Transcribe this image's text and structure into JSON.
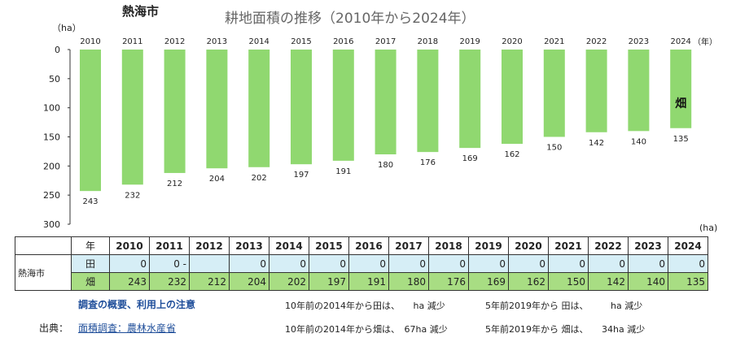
{
  "header": {
    "region": "熱海市",
    "title": "耕地面積の推移（2010年から2024年）",
    "unit_ha": "（ha）",
    "unit_year": "（年）",
    "unit_ha_right": "(ha)"
  },
  "chart_data": {
    "type": "bar",
    "orientation": "vertical-inverted",
    "categories": [
      "2010",
      "2011",
      "2012",
      "2013",
      "2014",
      "2015",
      "2016",
      "2017",
      "2018",
      "2019",
      "2020",
      "2021",
      "2022",
      "2023",
      "2024"
    ],
    "series": [
      {
        "name": "畑",
        "values": [
          243,
          232,
          212,
          204,
          202,
          197,
          191,
          180,
          176,
          169,
          162,
          150,
          142,
          140,
          135
        ]
      }
    ],
    "ylabel": "（ha）",
    "xlabel": "（年）",
    "ylim": [
      0,
      300
    ],
    "yticks": [
      0,
      50,
      100,
      150,
      200,
      250,
      300
    ],
    "colors": {
      "bar": "#90d870"
    }
  },
  "table": {
    "year_header": "年",
    "years": [
      "2010",
      "2011",
      "2012",
      "2013",
      "2014",
      "2015",
      "2016",
      "2017",
      "2018",
      "2019",
      "2020",
      "2021",
      "2022",
      "2023",
      "2024"
    ],
    "region": "熱海市",
    "rows": [
      {
        "kind": "田",
        "values": [
          "0",
          "0 -",
          "",
          "0",
          "0",
          "0",
          "0",
          "0",
          "0",
          "0",
          "0",
          "0",
          "0",
          "0",
          "0"
        ]
      },
      {
        "kind": "畑",
        "values": [
          "243",
          "232",
          "212",
          "204",
          "202",
          "197",
          "191",
          "180",
          "176",
          "169",
          "162",
          "150",
          "142",
          "140",
          "135"
        ]
      }
    ]
  },
  "footer": {
    "notes_link": "調査の概要、利用上の注意",
    "source_label": "出典：",
    "source_link": "面積調査：農林水産省",
    "note_ta_10": "10年前の2014年から田は、　　ha 減少",
    "note_ta_5": "5年前2019年から 田は、　　　ha 減少",
    "note_hata_10": "10年前の2014年から畑は、　67ha 減少",
    "note_hata_5": "5年前2019年から 畑は、　　34ha 減少"
  }
}
